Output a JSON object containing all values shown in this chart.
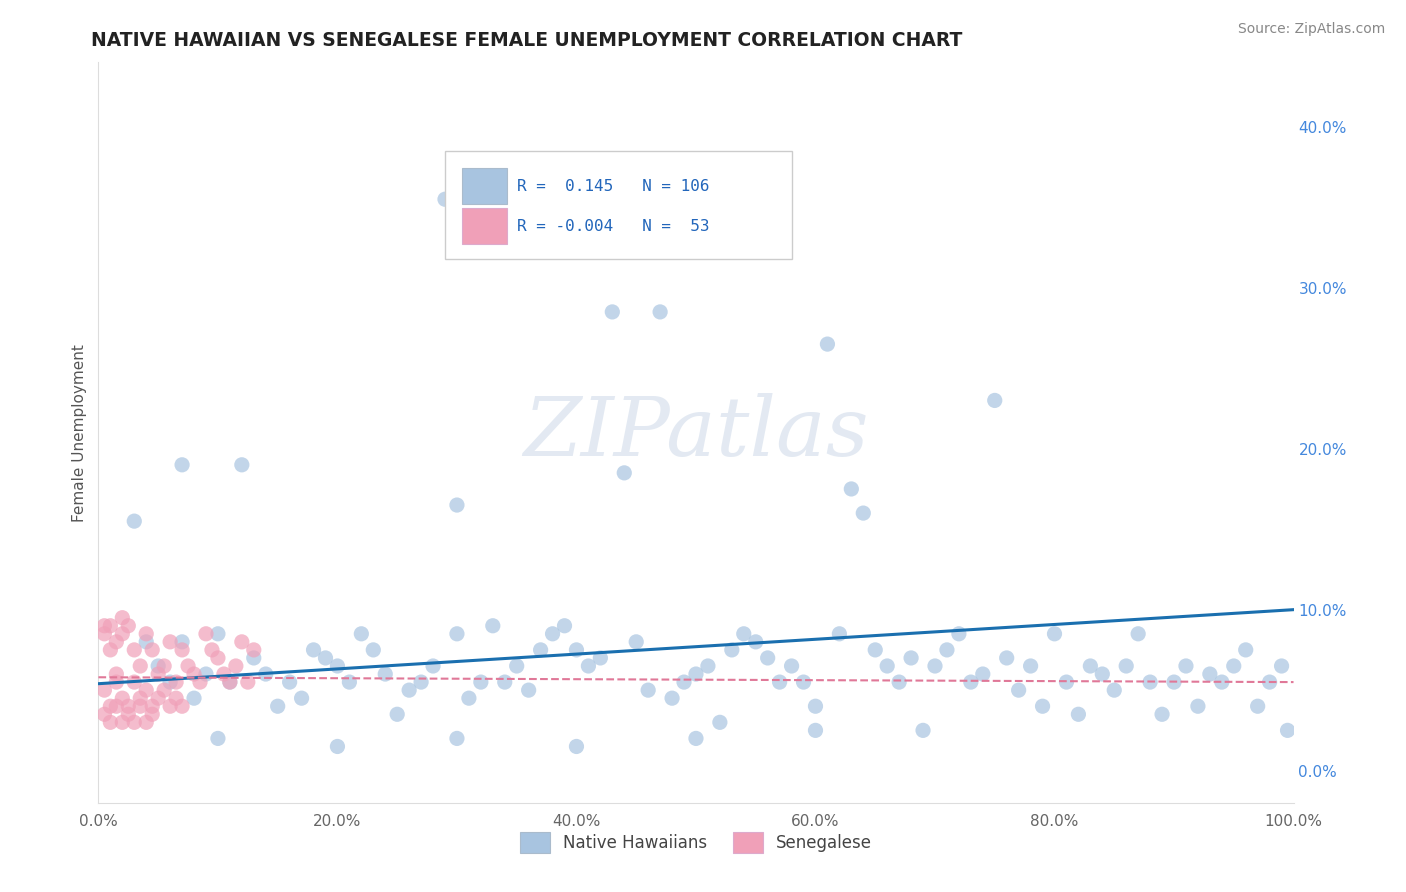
{
  "title": "NATIVE HAWAIIAN VS SENEGALESE FEMALE UNEMPLOYMENT CORRELATION CHART",
  "source": "Source: ZipAtlas.com",
  "ylabel": "Female Unemployment",
  "xlim": [
    0.0,
    1.0
  ],
  "ylim": [
    -0.02,
    0.44
  ],
  "xticks": [
    0.0,
    0.2,
    0.4,
    0.6,
    0.8,
    1.0
  ],
  "xtick_labels": [
    "0.0%",
    "20.0%",
    "40.0%",
    "60.0%",
    "80.0%",
    "100.0%"
  ],
  "ytick_positions": [
    0.0,
    0.1,
    0.2,
    0.3,
    0.4
  ],
  "ytick_labels": [
    "0.0%",
    "10.0%",
    "20.0%",
    "30.0%",
    "40.0%"
  ],
  "background_color": "#ffffff",
  "watermark_text": "ZIPatlas",
  "hawaiian_color": "#a8c4e0",
  "senegalese_color": "#f0a0b8",
  "hawaiian_line_color": "#1a6faf",
  "senegalese_line_color": "#e07898",
  "hawaiian_r": 0.145,
  "hawaiian_n": 106,
  "senegalese_r": -0.004,
  "senegalese_n": 53,
  "haw_line_x0": 0.0,
  "haw_line_y0": 0.054,
  "haw_line_x1": 1.0,
  "haw_line_y1": 0.1,
  "sen_line_x0": 0.0,
  "sen_line_y0": 0.058,
  "sen_line_x1": 1.0,
  "sen_line_y1": 0.055,
  "hawaiian_points": [
    [
      0.03,
      0.155
    ],
    [
      0.07,
      0.19
    ],
    [
      0.12,
      0.19
    ],
    [
      0.29,
      0.355
    ],
    [
      0.3,
      0.165
    ],
    [
      0.43,
      0.285
    ],
    [
      0.44,
      0.185
    ],
    [
      0.47,
      0.285
    ],
    [
      0.61,
      0.265
    ],
    [
      0.63,
      0.175
    ],
    [
      0.64,
      0.16
    ],
    [
      0.75,
      0.23
    ],
    [
      0.04,
      0.08
    ],
    [
      0.05,
      0.065
    ],
    [
      0.06,
      0.055
    ],
    [
      0.07,
      0.08
    ],
    [
      0.08,
      0.045
    ],
    [
      0.09,
      0.06
    ],
    [
      0.1,
      0.085
    ],
    [
      0.11,
      0.055
    ],
    [
      0.13,
      0.07
    ],
    [
      0.14,
      0.06
    ],
    [
      0.15,
      0.04
    ],
    [
      0.16,
      0.055
    ],
    [
      0.17,
      0.045
    ],
    [
      0.18,
      0.075
    ],
    [
      0.19,
      0.07
    ],
    [
      0.2,
      0.065
    ],
    [
      0.21,
      0.055
    ],
    [
      0.22,
      0.085
    ],
    [
      0.23,
      0.075
    ],
    [
      0.24,
      0.06
    ],
    [
      0.25,
      0.035
    ],
    [
      0.26,
      0.05
    ],
    [
      0.27,
      0.055
    ],
    [
      0.28,
      0.065
    ],
    [
      0.3,
      0.085
    ],
    [
      0.31,
      0.045
    ],
    [
      0.32,
      0.055
    ],
    [
      0.33,
      0.09
    ],
    [
      0.34,
      0.055
    ],
    [
      0.35,
      0.065
    ],
    [
      0.36,
      0.05
    ],
    [
      0.37,
      0.075
    ],
    [
      0.38,
      0.085
    ],
    [
      0.39,
      0.09
    ],
    [
      0.4,
      0.075
    ],
    [
      0.41,
      0.065
    ],
    [
      0.42,
      0.07
    ],
    [
      0.45,
      0.08
    ],
    [
      0.46,
      0.05
    ],
    [
      0.48,
      0.045
    ],
    [
      0.49,
      0.055
    ],
    [
      0.5,
      0.06
    ],
    [
      0.51,
      0.065
    ],
    [
      0.52,
      0.03
    ],
    [
      0.53,
      0.075
    ],
    [
      0.54,
      0.085
    ],
    [
      0.55,
      0.08
    ],
    [
      0.56,
      0.07
    ],
    [
      0.57,
      0.055
    ],
    [
      0.58,
      0.065
    ],
    [
      0.59,
      0.055
    ],
    [
      0.6,
      0.04
    ],
    [
      0.62,
      0.085
    ],
    [
      0.65,
      0.075
    ],
    [
      0.66,
      0.065
    ],
    [
      0.67,
      0.055
    ],
    [
      0.68,
      0.07
    ],
    [
      0.69,
      0.025
    ],
    [
      0.7,
      0.065
    ],
    [
      0.71,
      0.075
    ],
    [
      0.72,
      0.085
    ],
    [
      0.73,
      0.055
    ],
    [
      0.74,
      0.06
    ],
    [
      0.76,
      0.07
    ],
    [
      0.77,
      0.05
    ],
    [
      0.78,
      0.065
    ],
    [
      0.79,
      0.04
    ],
    [
      0.8,
      0.085
    ],
    [
      0.81,
      0.055
    ],
    [
      0.82,
      0.035
    ],
    [
      0.83,
      0.065
    ],
    [
      0.84,
      0.06
    ],
    [
      0.85,
      0.05
    ],
    [
      0.86,
      0.065
    ],
    [
      0.87,
      0.085
    ],
    [
      0.88,
      0.055
    ],
    [
      0.89,
      0.035
    ],
    [
      0.9,
      0.055
    ],
    [
      0.91,
      0.065
    ],
    [
      0.92,
      0.04
    ],
    [
      0.93,
      0.06
    ],
    [
      0.94,
      0.055
    ],
    [
      0.95,
      0.065
    ],
    [
      0.96,
      0.075
    ],
    [
      0.97,
      0.04
    ],
    [
      0.98,
      0.055
    ],
    [
      0.99,
      0.065
    ],
    [
      0.995,
      0.025
    ],
    [
      0.1,
      0.02
    ],
    [
      0.2,
      0.015
    ],
    [
      0.3,
      0.02
    ],
    [
      0.4,
      0.015
    ],
    [
      0.5,
      0.02
    ],
    [
      0.6,
      0.025
    ]
  ],
  "senegalese_points": [
    [
      0.005,
      0.09
    ],
    [
      0.01,
      0.075
    ],
    [
      0.015,
      0.06
    ],
    [
      0.02,
      0.085
    ],
    [
      0.025,
      0.09
    ],
    [
      0.03,
      0.075
    ],
    [
      0.035,
      0.065
    ],
    [
      0.04,
      0.085
    ],
    [
      0.045,
      0.075
    ],
    [
      0.05,
      0.06
    ],
    [
      0.055,
      0.065
    ],
    [
      0.06,
      0.08
    ],
    [
      0.065,
      0.055
    ],
    [
      0.07,
      0.075
    ],
    [
      0.075,
      0.065
    ],
    [
      0.08,
      0.06
    ],
    [
      0.085,
      0.055
    ],
    [
      0.09,
      0.085
    ],
    [
      0.095,
      0.075
    ],
    [
      0.1,
      0.07
    ],
    [
      0.105,
      0.06
    ],
    [
      0.11,
      0.055
    ],
    [
      0.115,
      0.065
    ],
    [
      0.12,
      0.08
    ],
    [
      0.125,
      0.055
    ],
    [
      0.13,
      0.075
    ],
    [
      0.005,
      0.05
    ],
    [
      0.01,
      0.04
    ],
    [
      0.015,
      0.055
    ],
    [
      0.02,
      0.045
    ],
    [
      0.025,
      0.04
    ],
    [
      0.03,
      0.055
    ],
    [
      0.035,
      0.045
    ],
    [
      0.04,
      0.05
    ],
    [
      0.045,
      0.04
    ],
    [
      0.05,
      0.045
    ],
    [
      0.055,
      0.05
    ],
    [
      0.06,
      0.04
    ],
    [
      0.065,
      0.045
    ],
    [
      0.07,
      0.04
    ],
    [
      0.005,
      0.035
    ],
    [
      0.01,
      0.03
    ],
    [
      0.015,
      0.04
    ],
    [
      0.02,
      0.03
    ],
    [
      0.025,
      0.035
    ],
    [
      0.03,
      0.03
    ],
    [
      0.035,
      0.04
    ],
    [
      0.04,
      0.03
    ],
    [
      0.045,
      0.035
    ],
    [
      0.005,
      0.085
    ],
    [
      0.01,
      0.09
    ],
    [
      0.015,
      0.08
    ],
    [
      0.02,
      0.095
    ]
  ]
}
